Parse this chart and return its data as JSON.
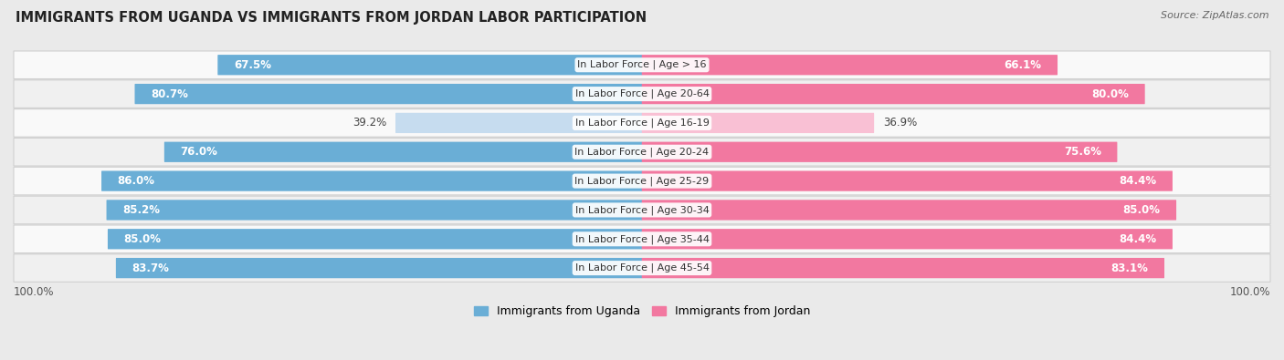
{
  "title": "IMMIGRANTS FROM UGANDA VS IMMIGRANTS FROM JORDAN LABOR PARTICIPATION",
  "source": "Source: ZipAtlas.com",
  "categories": [
    "In Labor Force | Age > 16",
    "In Labor Force | Age 20-64",
    "In Labor Force | Age 16-19",
    "In Labor Force | Age 20-24",
    "In Labor Force | Age 25-29",
    "In Labor Force | Age 30-34",
    "In Labor Force | Age 35-44",
    "In Labor Force | Age 45-54"
  ],
  "uganda_values": [
    67.5,
    80.7,
    39.2,
    76.0,
    86.0,
    85.2,
    85.0,
    83.7
  ],
  "jordan_values": [
    66.1,
    80.0,
    36.9,
    75.6,
    84.4,
    85.0,
    84.4,
    83.1
  ],
  "uganda_color": "#6aaed6",
  "uganda_light_color": "#c6dcef",
  "jordan_color": "#f278a0",
  "jordan_light_color": "#f9c0d4",
  "bg_color": "#eaeaea",
  "row_bg_even": "#f9f9f9",
  "row_bg_odd": "#f0f0f0",
  "bar_height": 0.62,
  "max_val": 100.0,
  "legend_uganda": "Immigrants from Uganda",
  "legend_jordan": "Immigrants from Jordan",
  "label_fontsize": 8.5,
  "cat_fontsize": 8.0,
  "title_fontsize": 10.5
}
